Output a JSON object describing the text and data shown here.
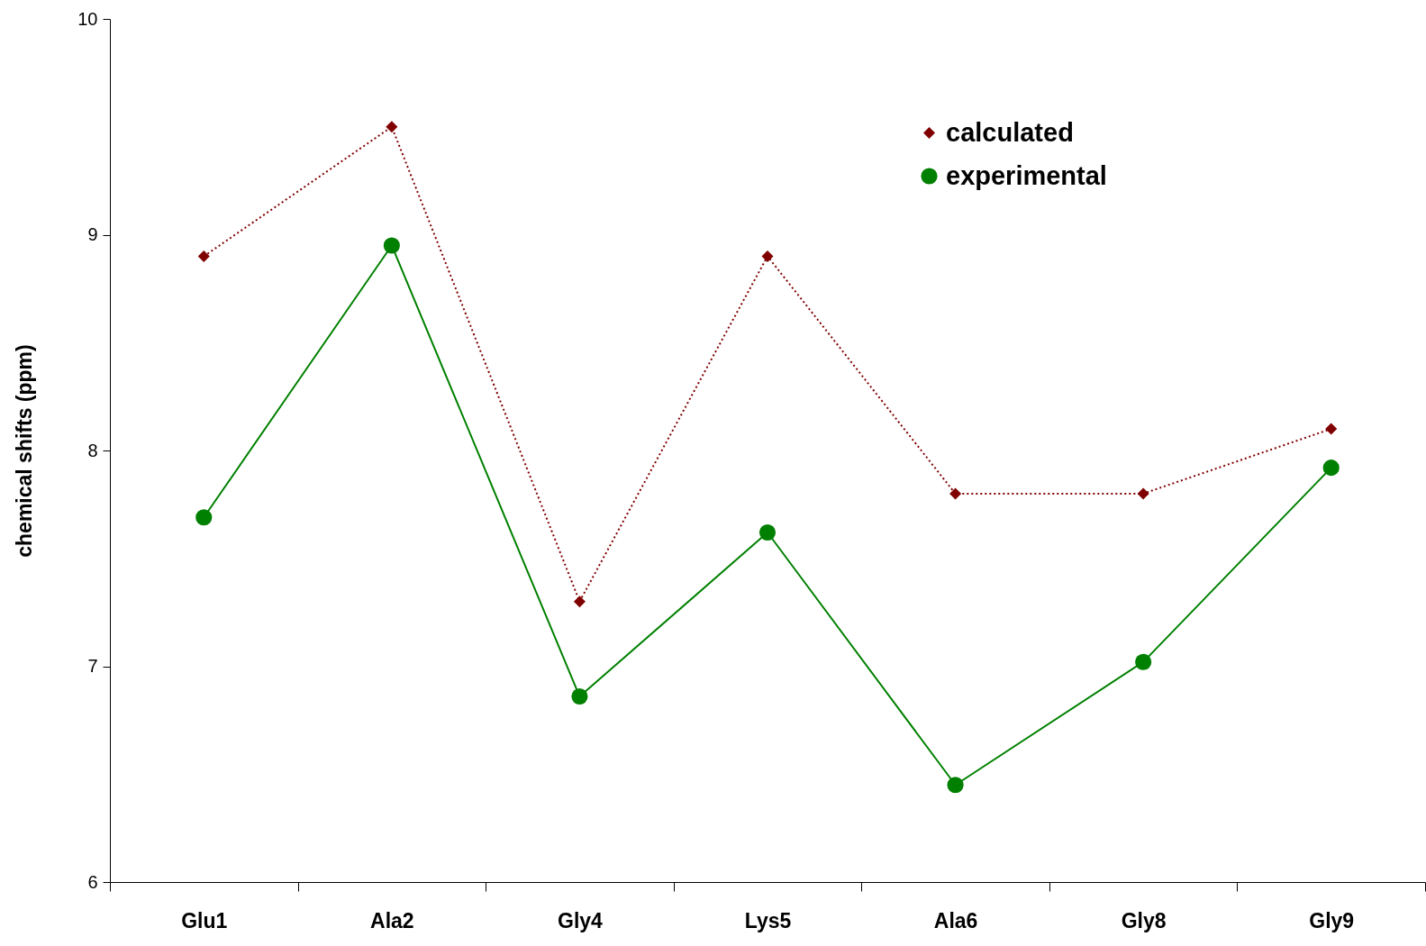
{
  "chart_data": {
    "type": "line",
    "ylabel": "chemical shifts (ppm)",
    "categories": [
      "Glu1",
      "Ala2",
      "Gly4",
      "Lys5",
      "Ala6",
      "Gly8",
      "Gly9"
    ],
    "series": [
      {
        "name": "calculated",
        "color": "#800000",
        "marker": "diamond",
        "line_style": "dotted",
        "values": [
          8.9,
          9.5,
          7.3,
          8.9,
          7.8,
          7.8,
          8.1
        ]
      },
      {
        "name": "experimental",
        "color": "#008000",
        "marker": "circle",
        "line_style": "solid",
        "values": [
          7.69,
          8.95,
          6.86,
          7.62,
          6.45,
          7.02,
          7.92
        ]
      }
    ],
    "ylim": [
      6,
      10
    ],
    "yticks": [
      6,
      7,
      8,
      9,
      10
    ],
    "grid": false,
    "legend": "top right"
  }
}
